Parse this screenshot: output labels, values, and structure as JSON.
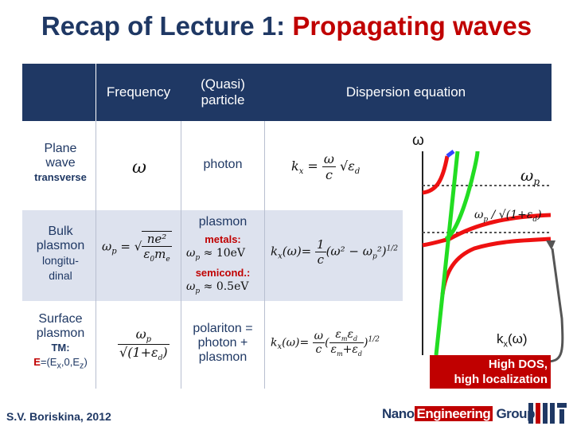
{
  "title": {
    "prefix": "Recap of Lecture 1: ",
    "accent": "Propagating waves"
  },
  "table": {
    "headers": {
      "frequency": "Frequency",
      "particle": "(Quasi)\nparticle",
      "dispersion": "Dispersion equation"
    },
    "rows": [
      {
        "label": "Plane\nwave",
        "sub": "transverse",
        "particle": "photon"
      },
      {
        "label": "Bulk\nplasmon",
        "sub": "longitu-\ndinal",
        "particle": "plasmon",
        "metals": "metals:",
        "semicond": "semicond.:",
        "metals_val": "≈ 10eV",
        "semicond_val": "≈ 0.5eV"
      },
      {
        "label": "Surface\nplasmon",
        "sub": "TM:",
        "field": "E=(Ex,0,Ez)",
        "particle": "polariton =\nphoton +\nplasmon"
      }
    ]
  },
  "graph": {
    "y_axis": "ω",
    "x_axis": "kx(ω)",
    "level_upper": "ωp",
    "level_lower": "ωp / √(1+εd)",
    "colors": {
      "light": "#22dd22",
      "plasmon": "#ee1111",
      "upper": "#3344ff"
    }
  },
  "badge": {
    "line1": "High DOS,",
    "line2": "high localization"
  },
  "author": "S.V. Boriskina, 2012",
  "group": {
    "nano": "Nano",
    "eng": "Engineering",
    "grp": " Group"
  },
  "logo": "MIT-logo-icon"
}
